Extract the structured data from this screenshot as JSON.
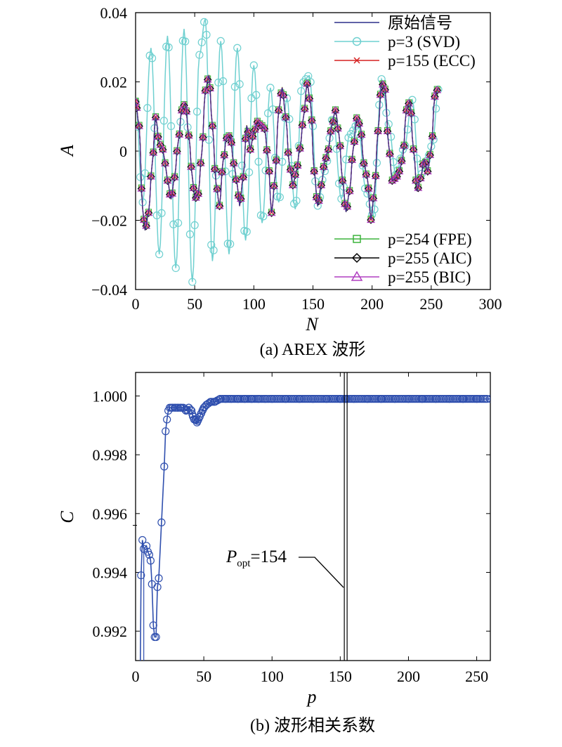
{
  "chart_data": [
    {
      "type": "line",
      "title": "",
      "caption": "(a) AREX 波形",
      "xlabel": "N",
      "ylabel": "A",
      "xlim": [
        0,
        300
      ],
      "ylim": [
        -0.04,
        0.04
      ],
      "xticks": [
        0,
        50,
        100,
        150,
        200,
        250,
        300
      ],
      "yticks": [
        -0.04,
        -0.02,
        0,
        0.02,
        0.04
      ],
      "ytick_labels": [
        "−0.04",
        "−0.02",
        "0",
        "0.02",
        "0.04"
      ],
      "grid": false,
      "legend": [
        "原始信号",
        "p=3 (SVD)",
        "p=155 (ECC)",
        "p=254 (FPE)",
        "p=255 (AIC)",
        "p=255 (BIC)"
      ],
      "legend_position": "top-right and bottom-right",
      "series": [
        {
          "name": "原始信号",
          "color": "#2b2f8a",
          "marker": "none"
        },
        {
          "name": "p=3 (SVD)",
          "color": "#6fd0d0",
          "marker": "circle"
        },
        {
          "name": "p=155 (ECC)",
          "color": "#d62020",
          "marker": "x"
        },
        {
          "name": "p=254 (FPE)",
          "color": "#3cb43c",
          "marker": "square"
        },
        {
          "name": "p=255 (AIC)",
          "color": "#000000",
          "marker": "diamond"
        },
        {
          "name": "p=255 (BIC)",
          "color": "#b03fc0",
          "marker": "triangle"
        }
      ],
      "keypoints": {
        "original": [
          [
            0,
            0.0143
          ],
          [
            3,
            0.0073
          ],
          [
            6,
            -0.0168
          ],
          [
            8,
            -0.0228
          ],
          [
            11,
            -0.0178
          ],
          [
            14,
            -0.0038
          ],
          [
            17,
            0.0098
          ],
          [
            20,
            0.0023
          ],
          [
            23,
            0.0005
          ],
          [
            25,
            -0.0035
          ],
          [
            27,
            -0.0085
          ],
          [
            30,
            -0.0138
          ],
          [
            33,
            -0.0075
          ],
          [
            36,
            0.0025
          ],
          [
            39,
            0.0118
          ],
          [
            42,
            0.0138
          ],
          [
            45,
            0.0045
          ],
          [
            48,
            -0.0075
          ],
          [
            50,
            -0.0138
          ],
          [
            53,
            -0.0123
          ],
          [
            56,
            -0.0005
          ],
          [
            59,
            0.0175
          ],
          [
            62,
            0.0218
          ],
          [
            65,
            0.0073
          ],
          [
            68,
            -0.0093
          ],
          [
            71,
            -0.0158
          ],
          [
            74,
            -0.0028
          ],
          [
            77,
            0.0038
          ],
          [
            80,
            0.0045
          ],
          [
            83,
            -0.0035
          ],
          [
            86,
            -0.0098
          ],
          [
            88,
            -0.0158
          ],
          [
            91,
            -0.0075
          ],
          [
            94,
            0.0073
          ],
          [
            97,
            0.0005
          ],
          [
            100,
            0.0055
          ],
          [
            103,
            0.0085
          ],
          [
            106,
            0.0075
          ],
          [
            109,
            0.0065
          ],
          [
            112,
            -0.0018
          ],
          [
            115,
            -0.0178
          ],
          [
            118,
            -0.0075
          ],
          [
            121,
            0.0118
          ],
          [
            124,
            0.0183
          ],
          [
            127,
            0.0098
          ],
          [
            130,
            -0.0038
          ],
          [
            133,
            -0.0098
          ],
          [
            136,
            -0.0058
          ],
          [
            139,
            0.0008
          ],
          [
            142,
            0.0098
          ],
          [
            145,
            0.0195
          ],
          [
            148,
            0.0138
          ],
          [
            151,
            -0.0058
          ],
          [
            154,
            -0.0158
          ],
          [
            157,
            -0.0098
          ],
          [
            160,
            -0.0028
          ],
          [
            163,
            0.0005
          ],
          [
            166,
            0.0075
          ],
          [
            169,
            0.0118
          ],
          [
            172,
            0.0048
          ],
          [
            175,
            -0.0085
          ],
          [
            178,
            -0.0175
          ],
          [
            181,
            -0.0115
          ],
          [
            184,
            0.0005
          ],
          [
            187,
            0.0095
          ],
          [
            190,
            0.0075
          ],
          [
            193,
            -0.0035
          ],
          [
            196,
            -0.0078
          ],
          [
            199,
            -0.0198
          ],
          [
            202,
            -0.0115
          ],
          [
            205,
            0.0058
          ],
          [
            208,
            0.0198
          ],
          [
            211,
            0.0178
          ],
          [
            214,
            0.0018
          ],
          [
            217,
            -0.0085
          ],
          [
            220,
            -0.0078
          ],
          [
            223,
            -0.0058
          ],
          [
            226,
            -0.0018
          ],
          [
            229,
            0.0118
          ],
          [
            232,
            0.0145
          ],
          [
            235,
            0.0005
          ],
          [
            238,
            -0.0115
          ],
          [
            241,
            -0.0078
          ],
          [
            244,
            -0.0025
          ],
          [
            247,
            -0.0058
          ],
          [
            250,
            0.0005
          ],
          [
            253,
            0.0158
          ],
          [
            256,
            0.0183
          ]
        ],
        "svd_p3": [
          [
            0,
            0.0143
          ],
          [
            6,
            -0.0148
          ],
          [
            13,
            0.0298
          ],
          [
            20,
            -0.0298
          ],
          [
            27,
            0.0333
          ],
          [
            34,
            -0.0338
          ],
          [
            41,
            0.0353
          ],
          [
            48,
            -0.0378
          ],
          [
            54,
            0.0278
          ],
          [
            59,
            0.0383
          ],
          [
            65,
            -0.0318
          ],
          [
            72,
            0.0318
          ],
          [
            79,
            -0.0298
          ],
          [
            86,
            0.0298
          ],
          [
            93,
            -0.0258
          ],
          [
            100,
            0.0248
          ],
          [
            107,
            -0.0208
          ],
          [
            114,
            0.0183
          ],
          [
            121,
            -0.0148
          ],
          [
            128,
            0.0153
          ],
          [
            135,
            -0.0168
          ],
          [
            141,
            0.0198
          ],
          [
            147,
            0.0218
          ],
          [
            154,
            -0.0158
          ],
          [
            160,
            -0.0058
          ],
          [
            167,
            0.0098
          ],
          [
            174,
            -0.0138
          ],
          [
            181,
            0.0048
          ],
          [
            188,
            0.0078
          ],
          [
            195,
            -0.0118
          ],
          [
            201,
            -0.0188
          ],
          [
            208,
            0.0208
          ],
          [
            214,
            0.0078
          ],
          [
            220,
            -0.0068
          ],
          [
            227,
            0.0008
          ],
          [
            234,
            0.0148
          ],
          [
            240,
            -0.0078
          ],
          [
            246,
            -0.0028
          ],
          [
            251,
            0.0018
          ],
          [
            256,
            0.0178
          ]
        ]
      }
    },
    {
      "type": "line",
      "title": "",
      "caption": "(b) 波形相关系数",
      "xlabel": "p",
      "ylabel": "C",
      "xlim": [
        0,
        260
      ],
      "ylim": [
        0.991,
        1.0008
      ],
      "xticks": [
        0,
        50,
        100,
        150,
        200,
        250
      ],
      "yticks": [
        0.992,
        0.994,
        0.996,
        0.998,
        1.0
      ],
      "ytick_labels": [
        "0.992",
        "0.994",
        "0.996",
        "0.998",
        "1.000"
      ],
      "grid": false,
      "series": [
        {
          "name": "",
          "color": "#2f4fae",
          "marker": "circle",
          "x": [
            4,
            5,
            6,
            8,
            9,
            10,
            11,
            12,
            13,
            14,
            15,
            16,
            17,
            19,
            21,
            22,
            23,
            24,
            25,
            27,
            29,
            31,
            33,
            35,
            37,
            39,
            41,
            42,
            43,
            44,
            45,
            46,
            47,
            48,
            49,
            50,
            52,
            55,
            58,
            62,
            66,
            70,
            75,
            80,
            85,
            90,
            95,
            100,
            110,
            120,
            130,
            140,
            150,
            154,
            160,
            170,
            180,
            190,
            200,
            210,
            220,
            230,
            240,
            250,
            260
          ],
          "values": [
            0.9939,
            0.9951,
            0.9948,
            0.9949,
            0.9947,
            0.9946,
            0.9944,
            0.9936,
            0.9922,
            0.9918,
            0.9918,
            0.9935,
            0.9938,
            0.9957,
            0.9976,
            0.9988,
            0.9992,
            0.9995,
            0.9996,
            0.9996,
            0.9996,
            0.9996,
            0.9996,
            0.9996,
            0.9995,
            0.9996,
            0.9995,
            0.9993,
            0.9992,
            0.9992,
            0.9991,
            0.9992,
            0.9993,
            0.9994,
            0.9995,
            0.9996,
            0.9997,
            0.9998,
            0.9998,
            0.9999,
            0.9999,
            0.9999,
            0.9999,
            0.9999,
            0.9999,
            0.9999,
            0.9999,
            0.9999,
            0.9999,
            0.9999,
            0.9999,
            0.9999,
            0.9999,
            0.9999,
            0.9999,
            0.9999,
            0.9999,
            0.9999,
            0.9999,
            0.9999,
            0.9999,
            0.9999,
            0.9999,
            0.9999,
            0.9999
          ]
        }
      ],
      "popt": 154,
      "annotation": {
        "symbol": "P",
        "subscript": "opt",
        "value_text": "=154"
      }
    }
  ]
}
